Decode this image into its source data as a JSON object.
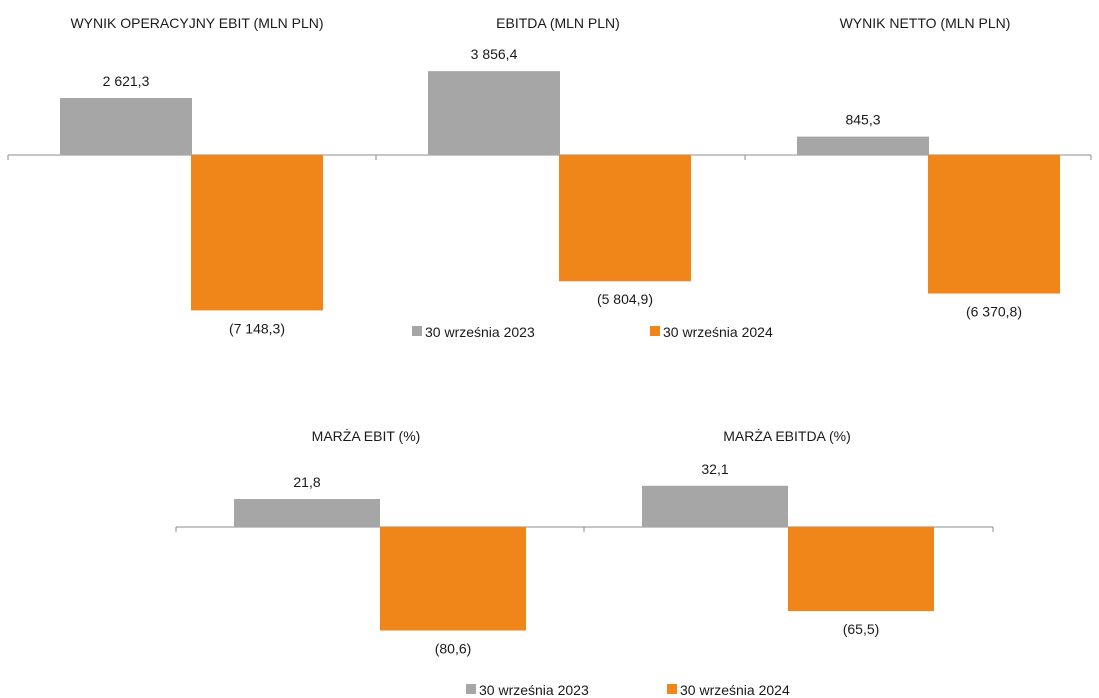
{
  "legend": {
    "series_2023": "30 września 2023",
    "series_2024": "30 września 2024"
  },
  "colors": {
    "series_2023": "#a6a6a6",
    "series_2024": "#f08519",
    "axis": "#8c8c8c"
  },
  "chart_data": [
    {
      "type": "bar",
      "title": "WYNIK OPERACYJNY EBIT (MLN PLN)",
      "values": [
        2621.3,
        -7148.3
      ],
      "labels": [
        "2 621,3",
        "(7 148,3)"
      ],
      "series_names": [
        "30 września 2023",
        "30 września 2024"
      ]
    },
    {
      "type": "bar",
      "title": "EBITDA (MLN PLN)",
      "values": [
        3856.4,
        -5804.9
      ],
      "labels": [
        "3 856,4",
        "(5 804,9)"
      ],
      "series_names": [
        "30 września 2023",
        "30 września 2024"
      ]
    },
    {
      "type": "bar",
      "title": "WYNIK NETTO (MLN PLN)",
      "values": [
        845.3,
        -6370.8
      ],
      "labels": [
        "845,3",
        "(6 370,8)"
      ],
      "series_names": [
        "30 września 2023",
        "30 września 2024"
      ]
    },
    {
      "type": "bar",
      "title": "MARŻA EBIT (%)",
      "values": [
        21.8,
        -80.6
      ],
      "labels": [
        "21,8",
        "(80,6)"
      ],
      "series_names": [
        "30 września 2023",
        "30 września 2024"
      ]
    },
    {
      "type": "bar",
      "title": "MARŻA EBITDA (%)",
      "values": [
        32.1,
        -65.5
      ],
      "labels": [
        "32,1",
        "(65,5)"
      ],
      "series_names": [
        "30 września 2023",
        "30 września 2024"
      ]
    }
  ]
}
